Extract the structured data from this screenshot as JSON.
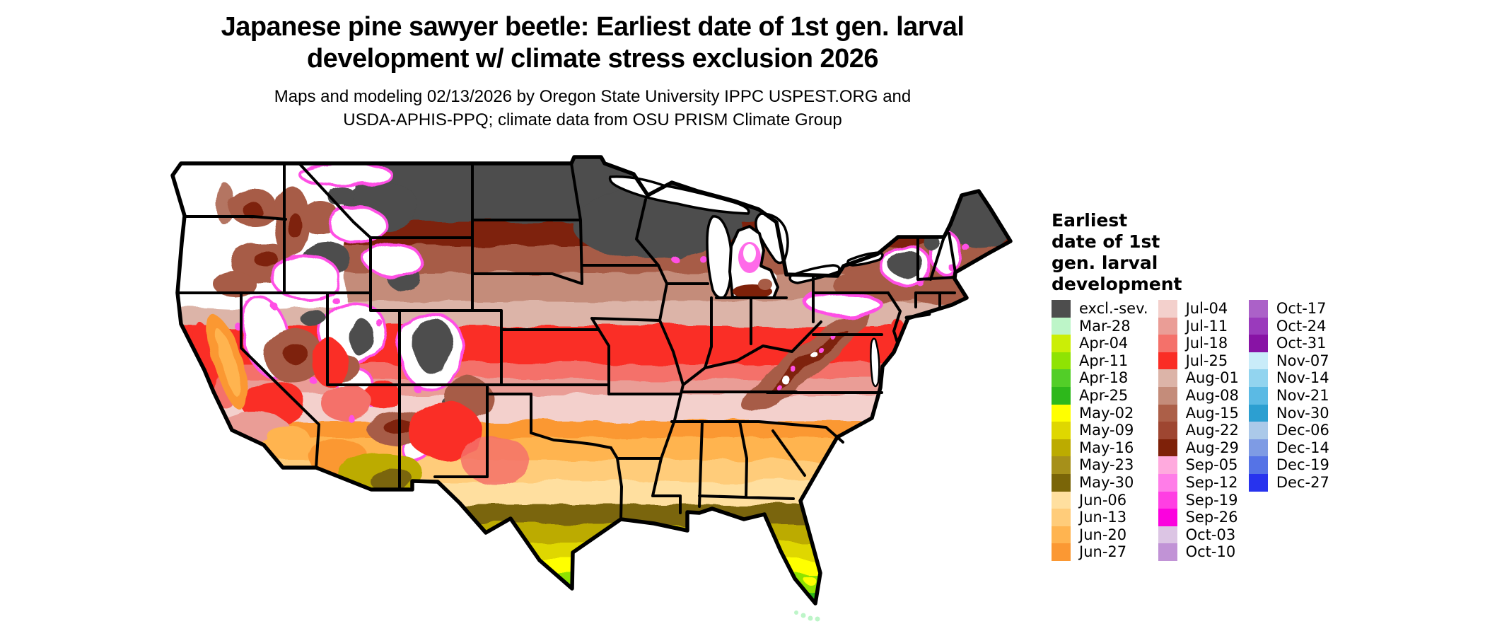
{
  "title": {
    "line1": "Japanese pine sawyer beetle: Earliest date of 1st gen. larval",
    "line2": "development w/ climate stress exclusion 2026"
  },
  "subtitle": {
    "line1": "Maps and modeling 02/13/2026 by Oregon State University IPPC USPEST.ORG and",
    "line2": "USDA-APHIS-PPQ; climate data from OSU PRISM Climate Group"
  },
  "legend": {
    "title_lines": [
      "Earliest",
      "date of 1st",
      "gen. larval",
      "development"
    ],
    "columns": [
      {
        "items": [
          {
            "label": "excl.-sev.",
            "color": "#4D4D4D"
          },
          {
            "label": "Mar-28",
            "color": "#BDF5C8"
          },
          {
            "label": "Apr-04",
            "color": "#CBEE06"
          },
          {
            "label": "Apr-11",
            "color": "#8FE303"
          },
          {
            "label": "Apr-18",
            "color": "#52CE28"
          },
          {
            "label": "Apr-25",
            "color": "#2DB81B"
          },
          {
            "label": "May-02",
            "color": "#FFFF00"
          },
          {
            "label": "May-09",
            "color": "#DFD700"
          },
          {
            "label": "May-16",
            "color": "#BCAB00"
          },
          {
            "label": "May-23",
            "color": "#A6901A"
          },
          {
            "label": "May-30",
            "color": "#7A6508"
          },
          {
            "label": "Jun-06",
            "color": "#FFDF9F"
          },
          {
            "label": "Jun-13",
            "color": "#FFCC7A"
          },
          {
            "label": "Jun-20",
            "color": "#FFB450"
          },
          {
            "label": "Jun-27",
            "color": "#FB9833"
          }
        ]
      },
      {
        "items": [
          {
            "label": "Jul-04",
            "color": "#F3D0CC"
          },
          {
            "label": "Jul-11",
            "color": "#EA9D96"
          },
          {
            "label": "Jul-18",
            "color": "#F4716A"
          },
          {
            "label": "Jul-25",
            "color": "#FA2D25"
          },
          {
            "label": "Aug-01",
            "color": "#DCB4A8"
          },
          {
            "label": "Aug-08",
            "color": "#C48C7A"
          },
          {
            "label": "Aug-15",
            "color": "#AC5F48"
          },
          {
            "label": "Aug-22",
            "color": "#9E4631"
          },
          {
            "label": "Aug-29",
            "color": "#7E2109"
          },
          {
            "label": "Sep-05",
            "color": "#FFAADE"
          },
          {
            "label": "Sep-12",
            "color": "#FF7DE8"
          },
          {
            "label": "Sep-19",
            "color": "#FF3FE3"
          },
          {
            "label": "Sep-26",
            "color": "#FB02DE"
          },
          {
            "label": "Oct-03",
            "color": "#DCC5E4"
          },
          {
            "label": "Oct-10",
            "color": "#C193D6"
          }
        ]
      },
      {
        "items": [
          {
            "label": "Oct-17",
            "color": "#AB61C8"
          },
          {
            "label": "Oct-24",
            "color": "#9A3ABC"
          },
          {
            "label": "Oct-31",
            "color": "#8813A5"
          },
          {
            "label": "Nov-07",
            "color": "#C9ECF9"
          },
          {
            "label": "Nov-14",
            "color": "#92D4EF"
          },
          {
            "label": "Nov-21",
            "color": "#5BBAE4"
          },
          {
            "label": "Nov-30",
            "color": "#2C9FD1"
          },
          {
            "label": "Dec-06",
            "color": "#ABC9E9"
          },
          {
            "label": "Dec-14",
            "color": "#7E9BE4"
          },
          {
            "label": "Dec-19",
            "color": "#5573E6"
          },
          {
            "label": "Dec-27",
            "color": "#2733EE"
          }
        ]
      }
    ]
  },
  "map": {
    "region": "contiguous United States",
    "type": "raster choropleth of earliest 1st gen. larval development date",
    "no_data_color": "#FFFFFF",
    "border_color": "#000000",
    "band_colors_north_to_south": [
      "#4D4D4D",
      "#7E2109",
      "#A75C46",
      "#C48C7A",
      "#DCB4A8",
      "#FA2D25",
      "#F4716A",
      "#EA9D96",
      "#F3D0CC",
      "#FB9833",
      "#FFB450",
      "#FFCC7A",
      "#FFDF9F",
      "#7A6508",
      "#BCAB00",
      "#DFD700",
      "#FFFF00",
      "#8FE303",
      "#2DB81B",
      "#BDF5C8"
    ]
  }
}
